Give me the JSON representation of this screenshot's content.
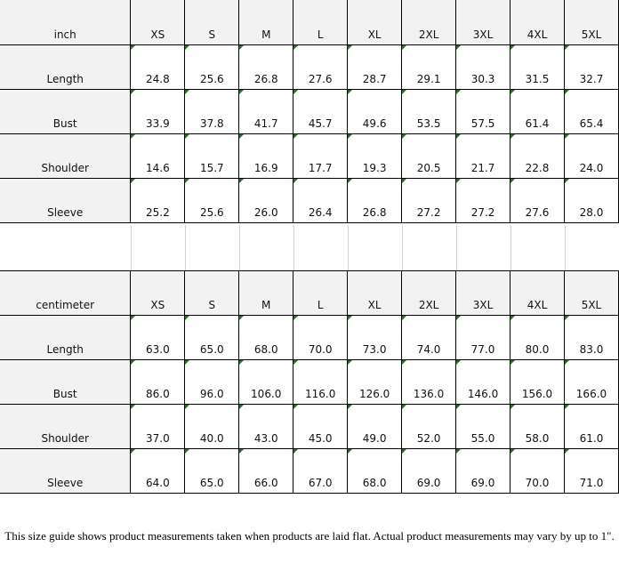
{
  "tables": [
    {
      "unit": "inch",
      "sizes": [
        "XS",
        "S",
        "M",
        "L",
        "XL",
        "2XL",
        "3XL",
        "4XL",
        "5XL"
      ],
      "rows": [
        {
          "label": "Length",
          "values": [
            "24.8",
            "25.6",
            "26.8",
            "27.6",
            "28.7",
            "29.1",
            "30.3",
            "31.5",
            "32.7"
          ]
        },
        {
          "label": "Bust",
          "values": [
            "33.9",
            "37.8",
            "41.7",
            "45.7",
            "49.6",
            "53.5",
            "57.5",
            "61.4",
            "65.4"
          ]
        },
        {
          "label": "Shoulder",
          "values": [
            "14.6",
            "15.7",
            "16.9",
            "17.7",
            "19.3",
            "20.5",
            "21.7",
            "22.8",
            "24.0"
          ]
        },
        {
          "label": "Sleeve",
          "values": [
            "25.2",
            "25.6",
            "26.0",
            "26.4",
            "26.8",
            "27.2",
            "27.2",
            "27.6",
            "28.0"
          ]
        }
      ]
    },
    {
      "unit": "centimeter",
      "sizes": [
        "XS",
        "S",
        "M",
        "L",
        "XL",
        "2XL",
        "3XL",
        "4XL",
        "5XL"
      ],
      "rows": [
        {
          "label": "Length",
          "values": [
            "63.0",
            "65.0",
            "68.0",
            "70.0",
            "73.0",
            "74.0",
            "77.0",
            "80.0",
            "83.0"
          ]
        },
        {
          "label": "Bust",
          "values": [
            "86.0",
            "96.0",
            "106.0",
            "116.0",
            "126.0",
            "136.0",
            "146.0",
            "156.0",
            "166.0"
          ]
        },
        {
          "label": "Shoulder",
          "values": [
            "37.0",
            "40.0",
            "43.0",
            "45.0",
            "49.0",
            "52.0",
            "55.0",
            "58.0",
            "61.0"
          ]
        },
        {
          "label": "Sleeve",
          "values": [
            "64.0",
            "65.0",
            "66.0",
            "67.0",
            "68.0",
            "69.0",
            "69.0",
            "70.0",
            "71.0"
          ]
        }
      ]
    }
  ],
  "note": "This size guide shows product measurements taken when products are laid flat. Actual product measurements may vary by up to 1\".",
  "colors": {
    "header_bg": "#f2f2f2",
    "corner_marker": "#1a7a1a"
  }
}
